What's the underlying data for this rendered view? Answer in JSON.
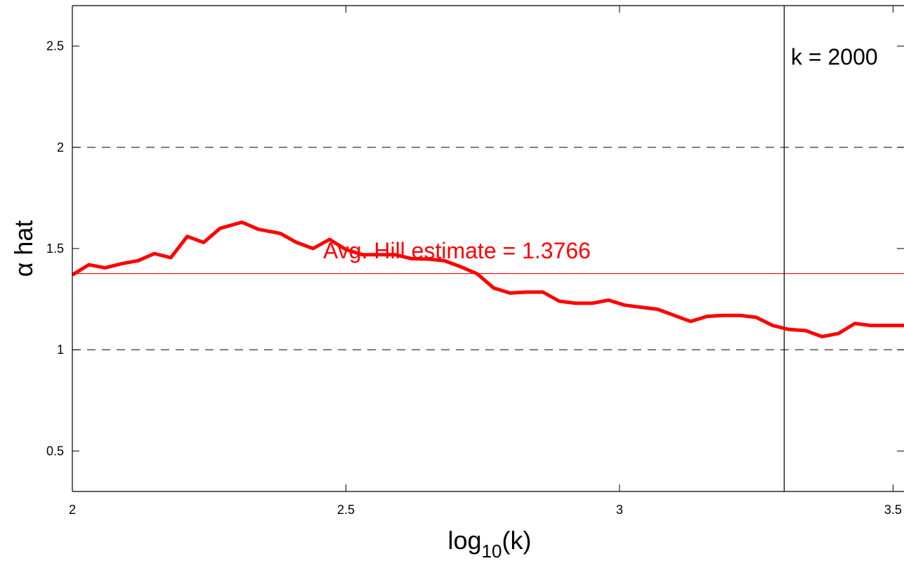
{
  "chart_data": {
    "type": "line",
    "title": "",
    "xlabel": "log",
    "xlabel_subscript": "10",
    "xlabel_suffix": "(k)",
    "ylabel": "α hat",
    "xlim": [
      2,
      3.52
    ],
    "ylim": [
      0.3,
      2.7
    ],
    "xticks": [
      2,
      2.5,
      3,
      3.5
    ],
    "xtick_labels": [
      "2",
      "2.5",
      "3",
      "3.5"
    ],
    "yticks": [
      0.5,
      1,
      1.5,
      2,
      2.5
    ],
    "ytick_labels": [
      "0.5",
      "1",
      "1.5",
      "2",
      "2.5"
    ],
    "grid": false,
    "reference_lines": {
      "dashed_y": [
        1,
        2
      ],
      "avg_y": 1.3766,
      "vertical_x": 3.301
    },
    "annotations": {
      "avg_text": "Avg. Hill estimate = 1.3766",
      "k_text": "k = 2000"
    },
    "colors": {
      "series": "#ff0000",
      "avg_line": "#ff0000",
      "axes": "#000000"
    },
    "series": [
      {
        "x": [
          2.0,
          2.03,
          2.06,
          2.09,
          2.12,
          2.15,
          2.18,
          2.21,
          2.24,
          2.27,
          2.31,
          2.34,
          2.38,
          2.41,
          2.44,
          2.47,
          2.5,
          2.53,
          2.56,
          2.59,
          2.62,
          2.65,
          2.68,
          2.71,
          2.74,
          2.77,
          2.8,
          2.83,
          2.86,
          2.89,
          2.92,
          2.95,
          2.98,
          3.01,
          3.04,
          3.07,
          3.1,
          3.13,
          3.16,
          3.19,
          3.22,
          3.25,
          3.28,
          3.31,
          3.34,
          3.37,
          3.4,
          3.43,
          3.46,
          3.49,
          3.52
        ],
        "y": [
          1.37,
          1.42,
          1.405,
          1.425,
          1.44,
          1.475,
          1.455,
          1.56,
          1.53,
          1.6,
          1.63,
          1.595,
          1.575,
          1.53,
          1.5,
          1.545,
          1.495,
          1.47,
          1.47,
          1.47,
          1.45,
          1.448,
          1.44,
          1.41,
          1.375,
          1.305,
          1.28,
          1.285,
          1.285,
          1.24,
          1.23,
          1.23,
          1.245,
          1.22,
          1.21,
          1.2,
          1.17,
          1.14,
          1.165,
          1.17,
          1.17,
          1.16,
          1.12,
          1.1,
          1.095,
          1.065,
          1.08,
          1.13,
          1.12,
          1.12,
          1.12
        ]
      }
    ]
  }
}
